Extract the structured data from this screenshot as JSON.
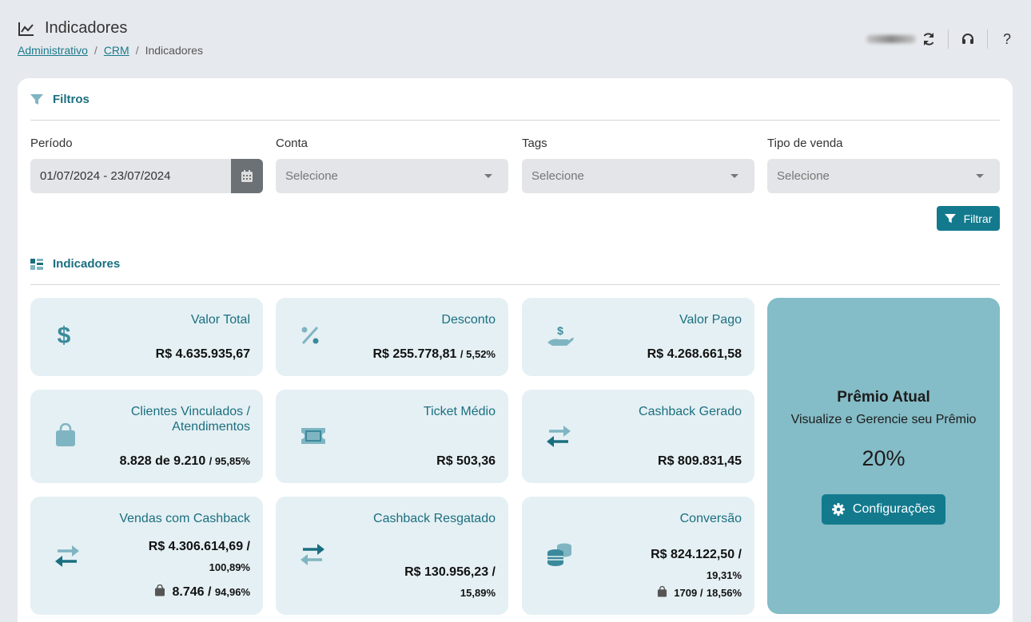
{
  "header": {
    "title": "Indicadores",
    "breadcrumb": [
      {
        "label": "Administrativo",
        "link": true
      },
      {
        "label": "CRM",
        "link": true
      },
      {
        "label": "Indicadores",
        "link": false
      }
    ],
    "separator": "/",
    "icons": [
      "refresh-icon",
      "headset-icon",
      "help-icon"
    ],
    "help_label": "?"
  },
  "filters": {
    "section_title": "Filtros",
    "periodo": {
      "label": "Período",
      "value": "01/07/2024 - 23/07/2024"
    },
    "conta": {
      "label": "Conta",
      "placeholder": "Selecione"
    },
    "tags": {
      "label": "Tags",
      "placeholder": "Selecione"
    },
    "tipo_venda": {
      "label": "Tipo de venda",
      "placeholder": "Selecione"
    },
    "button_label": "Filtrar"
  },
  "indicators": {
    "section_title": "Indicadores",
    "valor_total": {
      "title": "Valor Total",
      "value": "R$ 4.635.935,67",
      "icon": "dollar-icon"
    },
    "desconto": {
      "title": "Desconto",
      "value": "R$ 255.778,81",
      "pct": "/ 5,52%",
      "icon": "percent-icon"
    },
    "valor_pago": {
      "title": "Valor Pago",
      "value": "R$ 4.268.661,58",
      "icon": "hand-money-icon"
    },
    "clientes": {
      "title_line1": "Clientes Vinculados /",
      "title_line2": "Atendimentos",
      "value": "8.828 de 9.210",
      "pct": "/ 95,85%",
      "icon": "bag-icon"
    },
    "ticket": {
      "title": "Ticket Médio",
      "value": "R$ 503,36",
      "icon": "ticket-icon"
    },
    "cashback_gerado": {
      "title": "Cashback Gerado",
      "value": "R$ 809.831,45",
      "icon": "exchange-icon"
    },
    "vendas_cashback": {
      "title": "Vendas com Cashback",
      "value": "R$ 4.306.614,69 /",
      "pct": "100,89%",
      "count": "8.746 /",
      "count_pct": "94,96%",
      "icon": "exchange-icon"
    },
    "cashback_resgatado": {
      "title": "Cashback Resgatado",
      "value": "R$ 130.956,23 /",
      "pct": "15,89%",
      "icon": "exchange-icon"
    },
    "conversao": {
      "title": "Conversão",
      "value": "R$ 824.122,50 /",
      "pct": "19,31%",
      "count": "1709 /",
      "count_pct": "18,56%",
      "icon": "coins-icon"
    }
  },
  "premio": {
    "title": "Prêmio Atual",
    "subtitle": "Visualize e Gerencie seu Prêmio",
    "percent": "20%",
    "button_label": "Configurações"
  },
  "colors": {
    "accent": "#137a8e",
    "card_bg": "#e5f0f4",
    "premio_bg": "#84bcc7",
    "title_color": "#1a6f7f"
  }
}
